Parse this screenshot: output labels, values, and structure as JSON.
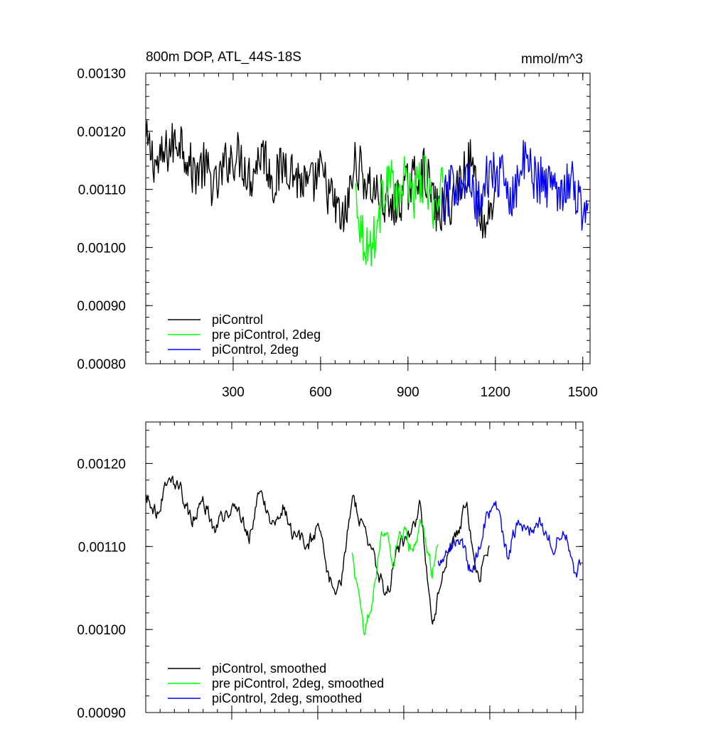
{
  "chart_data": [
    {
      "type": "line",
      "title": "800m DOP, ATL_44S-18S",
      "units": "mmol/m^3",
      "xlabel": "",
      "ylabel": "",
      "xlim": [
        0,
        1525
      ],
      "ylim": [
        0.0008,
        0.0013
      ],
      "x_tick_values": [
        300,
        600,
        900,
        1200,
        1500
      ],
      "x_tick_labels": [
        "300",
        "600",
        "900",
        "1200",
        "1500"
      ],
      "y_tick_values": [
        0.0008,
        0.0009,
        0.001,
        0.0011,
        0.0012,
        0.0013
      ],
      "y_tick_labels": [
        "0.00080",
        "0.00090",
        "0.00100",
        "0.00110",
        "0.00120",
        "0.00130"
      ],
      "legend_position": "bottom-left",
      "series": [
        {
          "name": "piControl",
          "color": "#000000",
          "x": [
            1,
            40,
            80,
            120,
            160,
            200,
            240,
            280,
            320,
            360,
            400,
            440,
            480,
            520,
            560,
            600,
            640,
            680,
            720,
            760,
            800,
            840,
            880,
            920,
            960,
            1000,
            1040,
            1080,
            1120,
            1160,
            1200
          ],
          "values": [
            0.00118,
            0.00114,
            0.00117,
            0.00119,
            0.00113,
            0.00114,
            0.0011,
            0.00115,
            0.00116,
            0.00112,
            0.00117,
            0.00111,
            0.00115,
            0.00112,
            0.0011,
            0.00113,
            0.00108,
            0.00104,
            0.00115,
            0.00111,
            0.00109,
            0.00106,
            0.00109,
            0.00112,
            0.00113,
            0.00106,
            0.00107,
            0.00112,
            0.00115,
            0.00103,
            0.0011
          ]
        },
        {
          "name": "pre piControl, 2deg",
          "color": "#00ff00",
          "x": [
            720,
            740,
            760,
            780,
            800,
            820,
            840,
            860,
            880,
            900,
            920,
            940,
            960,
            980,
            1000,
            1020
          ],
          "values": [
            0.0011,
            0.00103,
            0.001,
            0.00101,
            0.00105,
            0.00111,
            0.00113,
            0.00107,
            0.00111,
            0.00112,
            0.00109,
            0.00111,
            0.00112,
            0.00108,
            0.00106,
            0.00111
          ]
        },
        {
          "name": "piControl, 2deg",
          "color": "#0000ff",
          "x": [
            1020,
            1060,
            1100,
            1140,
            1180,
            1220,
            1260,
            1300,
            1340,
            1380,
            1420,
            1460,
            1500,
            1520
          ],
          "values": [
            0.00108,
            0.00111,
            0.00112,
            0.00107,
            0.00113,
            0.00112,
            0.00109,
            0.00115,
            0.00112,
            0.00111,
            0.0011,
            0.00112,
            0.00106,
            0.0011
          ]
        }
      ]
    },
    {
      "type": "line",
      "title": "",
      "xlabel": "",
      "ylabel": "",
      "xlim": [
        0,
        1525
      ],
      "ylim": [
        0.0009,
        0.00125
      ],
      "x_tick_values": [
        300,
        600,
        900,
        1200,
        1500
      ],
      "x_tick_labels": [],
      "y_tick_values": [
        0.0009,
        0.001,
        0.0011,
        0.0012
      ],
      "y_tick_labels": [
        "0.00090",
        "0.00100",
        "0.00110",
        "0.00120"
      ],
      "legend_position": "bottom-left",
      "series": [
        {
          "name": "piControl, smoothed",
          "color": "#000000",
          "x": [
            1,
            40,
            80,
            120,
            160,
            200,
            240,
            280,
            320,
            360,
            400,
            440,
            480,
            520,
            560,
            600,
            640,
            680,
            720,
            760,
            800,
            840,
            880,
            920,
            960,
            1000,
            1040,
            1080,
            1120,
            1160,
            1200
          ],
          "values": [
            0.00116,
            0.00114,
            0.00119,
            0.00117,
            0.00113,
            0.00116,
            0.00112,
            0.00114,
            0.00115,
            0.00111,
            0.00117,
            0.00112,
            0.00115,
            0.00111,
            0.0011,
            0.00112,
            0.00106,
            0.00105,
            0.00116,
            0.00112,
            0.00108,
            0.00104,
            0.0011,
            0.00111,
            0.00115,
            0.001,
            0.00108,
            0.00111,
            0.00115,
            0.00106,
            0.00111
          ]
        },
        {
          "name": "pre piControl, 2deg, smoothed",
          "color": "#00ff00",
          "x": [
            720,
            740,
            760,
            780,
            800,
            820,
            840,
            860,
            880,
            900,
            920,
            940,
            960,
            980,
            1000,
            1020
          ],
          "values": [
            0.00109,
            0.00104,
            0.001,
            0.00102,
            0.00106,
            0.00111,
            0.00112,
            0.00108,
            0.00111,
            0.00112,
            0.0011,
            0.0011,
            0.00113,
            0.00109,
            0.00107,
            0.00111
          ]
        },
        {
          "name": "piControl, 2deg, smoothed",
          "color": "#0000ff",
          "x": [
            1020,
            1060,
            1100,
            1140,
            1180,
            1220,
            1260,
            1300,
            1340,
            1380,
            1420,
            1460,
            1500,
            1520
          ],
          "values": [
            0.00108,
            0.0011,
            0.00111,
            0.00106,
            0.00113,
            0.00115,
            0.00109,
            0.00113,
            0.00112,
            0.00113,
            0.0011,
            0.00112,
            0.00106,
            0.00109
          ]
        }
      ]
    }
  ]
}
